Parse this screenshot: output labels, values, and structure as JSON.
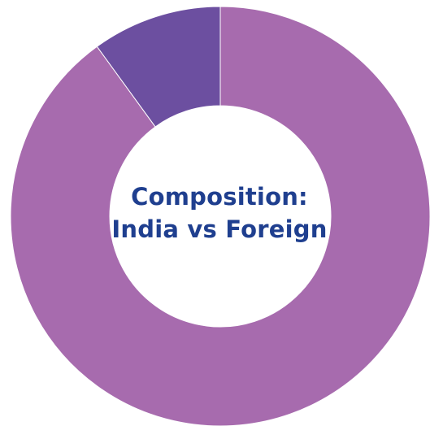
{
  "chart_data": {
    "type": "pie",
    "variant": "donut",
    "title_lines": [
      "Composition:",
      "India vs Foreign"
    ],
    "categories": [
      "",
      ""
    ],
    "values": [
      90,
      10
    ],
    "colors": [
      "#a76bae",
      "#6c4fa0"
    ],
    "title_color": "#1f3f8f",
    "legend": "none"
  }
}
